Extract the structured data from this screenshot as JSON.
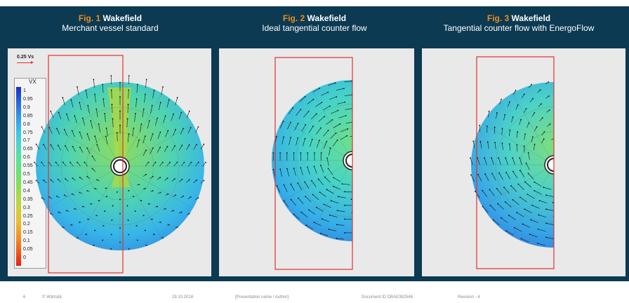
{
  "figures": [
    {
      "num": "Fig. 1",
      "title": "Wakefield",
      "subtitle": "Merchant vessel standard"
    },
    {
      "num": "Fig. 2",
      "title": "Wakefield",
      "subtitle": "Ideal tangential counter flow"
    },
    {
      "num": "Fig. 3",
      "title": "Wakefield",
      "subtitle": "Tangential counter flow with EnergoFlow"
    }
  ],
  "scale_label": "0.25 Vs",
  "legend": {
    "title": "VX",
    "labels": [
      "1",
      "0.95",
      "0.9",
      "0.85",
      "0.8",
      "0.75",
      "0.7",
      "0.65",
      "0.6",
      "0.55",
      "0.5",
      "0.45",
      "0.4",
      "0.35",
      "0.3",
      "0.25",
      "0.2",
      "0.15",
      "0.1",
      "0.05",
      "0"
    ],
    "colors": [
      "#1a2dcc",
      "#1f4fd8",
      "#2a6fe0",
      "#2f8fe6",
      "#35a9ea",
      "#3cc3ea",
      "#45d3d6",
      "#4edcb8",
      "#55e39a",
      "#5fe57e",
      "#6de467",
      "#85e055",
      "#a2dc48",
      "#bdd63d",
      "#d6ce34",
      "#e9bf2c",
      "#f2a626",
      "#f48a21",
      "#f2681c",
      "#ee4318",
      "#e82216"
    ],
    "range": [
      0,
      1
    ]
  },
  "colors": {
    "background": "#0b3a52",
    "accent": "#f08a1c",
    "highlight_box": "#e03030"
  },
  "footer": {
    "page": "6",
    "company": "© Wärtsilä",
    "date": "29.10.2018",
    "presentation": "[Presentation name / Author]",
    "document_id": "Document ID  DBAE382546",
    "revision": "Revision  - 4"
  }
}
